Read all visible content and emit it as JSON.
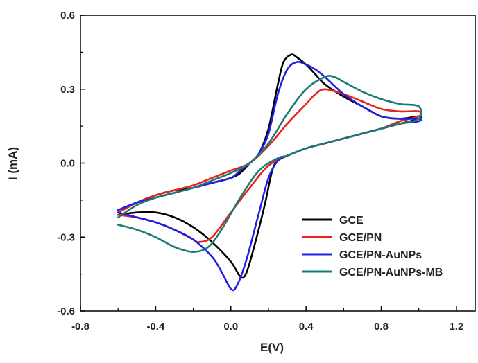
{
  "chart_data": {
    "type": "line",
    "title": "",
    "xlabel": "E(V)",
    "ylabel": "I (mA)",
    "xlim": [
      -0.8,
      1.3
    ],
    "ylim": [
      -0.6,
      0.6
    ],
    "xticks": [
      -0.8,
      -0.4,
      0.0,
      0.4,
      0.8,
      1.2
    ],
    "xtick_labels": [
      "-0.8",
      "-0.4",
      "0.0",
      "0.4",
      "0.8",
      "1.2"
    ],
    "yticks": [
      -0.6,
      -0.3,
      0.0,
      0.3,
      0.6
    ],
    "ytick_labels": [
      "-0.6",
      "-0.3",
      "0.0",
      "0.3",
      "0.6"
    ],
    "grid": false,
    "legend_position": "bottom-right",
    "series": [
      {
        "name": "GCE",
        "color": "#000000",
        "points": [
          [
            -0.6,
            -0.21
          ],
          [
            -0.5,
            -0.2
          ],
          [
            -0.4,
            -0.2
          ],
          [
            -0.3,
            -0.22
          ],
          [
            -0.2,
            -0.26
          ],
          [
            -0.1,
            -0.32
          ],
          [
            0.0,
            -0.4
          ],
          [
            0.05,
            -0.46
          ],
          [
            0.08,
            -0.45
          ],
          [
            0.12,
            -0.35
          ],
          [
            0.18,
            -0.17
          ],
          [
            0.22,
            -0.03
          ],
          [
            0.25,
            0.01
          ],
          [
            0.3,
            0.03
          ],
          [
            0.4,
            0.06
          ],
          [
            0.5,
            0.08
          ],
          [
            0.6,
            0.1
          ],
          [
            0.7,
            0.12
          ],
          [
            0.8,
            0.14
          ],
          [
            0.9,
            0.16
          ],
          [
            1.0,
            0.18
          ],
          [
            1.0,
            0.19
          ],
          [
            0.9,
            0.18
          ],
          [
            0.8,
            0.19
          ],
          [
            0.7,
            0.23
          ],
          [
            0.6,
            0.27
          ],
          [
            0.5,
            0.32
          ],
          [
            0.45,
            0.36
          ],
          [
            0.4,
            0.4
          ],
          [
            0.35,
            0.43
          ],
          [
            0.32,
            0.44
          ],
          [
            0.28,
            0.41
          ],
          [
            0.25,
            0.32
          ],
          [
            0.2,
            0.14
          ],
          [
            0.15,
            0.04
          ],
          [
            0.1,
            0.0
          ],
          [
            0.05,
            -0.04
          ],
          [
            0.0,
            -0.06
          ],
          [
            -0.1,
            -0.08
          ],
          [
            -0.2,
            -0.1
          ],
          [
            -0.3,
            -0.11
          ],
          [
            -0.4,
            -0.13
          ],
          [
            -0.5,
            -0.16
          ],
          [
            -0.6,
            -0.2
          ]
        ]
      },
      {
        "name": "GCE/PN",
        "color": "#e8231b",
        "points": [
          [
            -0.6,
            -0.21
          ],
          [
            -0.5,
            -0.22
          ],
          [
            -0.4,
            -0.24
          ],
          [
            -0.3,
            -0.27
          ],
          [
            -0.2,
            -0.31
          ],
          [
            -0.17,
            -0.32
          ],
          [
            -0.1,
            -0.3
          ],
          [
            0.0,
            -0.2
          ],
          [
            0.1,
            -0.1
          ],
          [
            0.2,
            -0.01
          ],
          [
            0.3,
            0.03
          ],
          [
            0.4,
            0.06
          ],
          [
            0.5,
            0.08
          ],
          [
            0.6,
            0.1
          ],
          [
            0.7,
            0.12
          ],
          [
            0.8,
            0.14
          ],
          [
            0.9,
            0.17
          ],
          [
            1.0,
            0.19
          ],
          [
            1.0,
            0.21
          ],
          [
            0.9,
            0.21
          ],
          [
            0.8,
            0.22
          ],
          [
            0.7,
            0.25
          ],
          [
            0.6,
            0.28
          ],
          [
            0.5,
            0.3
          ],
          [
            0.45,
            0.28
          ],
          [
            0.4,
            0.24
          ],
          [
            0.3,
            0.16
          ],
          [
            0.2,
            0.07
          ],
          [
            0.1,
            0.0
          ],
          [
            0.0,
            -0.03
          ],
          [
            -0.1,
            -0.06
          ],
          [
            -0.2,
            -0.09
          ],
          [
            -0.3,
            -0.11
          ],
          [
            -0.4,
            -0.13
          ],
          [
            -0.5,
            -0.16
          ],
          [
            -0.6,
            -0.2
          ]
        ]
      },
      {
        "name": "GCE/PN-AuNPs",
        "color": "#1f1fe8",
        "points": [
          [
            -0.6,
            -0.2
          ],
          [
            -0.5,
            -0.22
          ],
          [
            -0.4,
            -0.24
          ],
          [
            -0.3,
            -0.27
          ],
          [
            -0.2,
            -0.31
          ],
          [
            -0.1,
            -0.38
          ],
          [
            -0.05,
            -0.44
          ],
          [
            0.0,
            -0.51
          ],
          [
            0.03,
            -0.5
          ],
          [
            0.08,
            -0.4
          ],
          [
            0.15,
            -0.2
          ],
          [
            0.2,
            -0.06
          ],
          [
            0.25,
            0.01
          ],
          [
            0.3,
            0.03
          ],
          [
            0.4,
            0.06
          ],
          [
            0.5,
            0.08
          ],
          [
            0.6,
            0.1
          ],
          [
            0.7,
            0.12
          ],
          [
            0.8,
            0.14
          ],
          [
            0.9,
            0.16
          ],
          [
            1.0,
            0.17
          ],
          [
            1.0,
            0.18
          ],
          [
            0.9,
            0.18
          ],
          [
            0.8,
            0.19
          ],
          [
            0.7,
            0.23
          ],
          [
            0.6,
            0.28
          ],
          [
            0.5,
            0.35
          ],
          [
            0.45,
            0.38
          ],
          [
            0.4,
            0.4
          ],
          [
            0.35,
            0.41
          ],
          [
            0.3,
            0.38
          ],
          [
            0.25,
            0.28
          ],
          [
            0.2,
            0.12
          ],
          [
            0.15,
            0.04
          ],
          [
            0.1,
            0.0
          ],
          [
            0.05,
            -0.03
          ],
          [
            0.0,
            -0.06
          ],
          [
            -0.1,
            -0.08
          ],
          [
            -0.2,
            -0.1
          ],
          [
            -0.3,
            -0.12
          ],
          [
            -0.4,
            -0.14
          ],
          [
            -0.5,
            -0.16
          ],
          [
            -0.6,
            -0.19
          ]
        ]
      },
      {
        "name": "GCE/PN-AuNPs-MB",
        "color": "#1a7a74",
        "points": [
          [
            -0.6,
            -0.25
          ],
          [
            -0.5,
            -0.27
          ],
          [
            -0.4,
            -0.3
          ],
          [
            -0.3,
            -0.34
          ],
          [
            -0.2,
            -0.36
          ],
          [
            -0.12,
            -0.34
          ],
          [
            -0.05,
            -0.27
          ],
          [
            0.05,
            -0.14
          ],
          [
            0.15,
            -0.03
          ],
          [
            0.25,
            0.02
          ],
          [
            0.3,
            0.03
          ],
          [
            0.4,
            0.06
          ],
          [
            0.5,
            0.08
          ],
          [
            0.6,
            0.1
          ],
          [
            0.7,
            0.12
          ],
          [
            0.8,
            0.14
          ],
          [
            0.9,
            0.16
          ],
          [
            1.0,
            0.18
          ],
          [
            1.0,
            0.23
          ],
          [
            0.9,
            0.24
          ],
          [
            0.8,
            0.26
          ],
          [
            0.7,
            0.29
          ],
          [
            0.6,
            0.33
          ],
          [
            0.55,
            0.35
          ],
          [
            0.5,
            0.35
          ],
          [
            0.4,
            0.3
          ],
          [
            0.3,
            0.2
          ],
          [
            0.2,
            0.08
          ],
          [
            0.1,
            0.0
          ],
          [
            0.0,
            -0.04
          ],
          [
            -0.1,
            -0.07
          ],
          [
            -0.2,
            -0.1
          ],
          [
            -0.3,
            -0.12
          ],
          [
            -0.4,
            -0.14
          ],
          [
            -0.5,
            -0.17
          ],
          [
            -0.6,
            -0.22
          ]
        ]
      }
    ]
  }
}
